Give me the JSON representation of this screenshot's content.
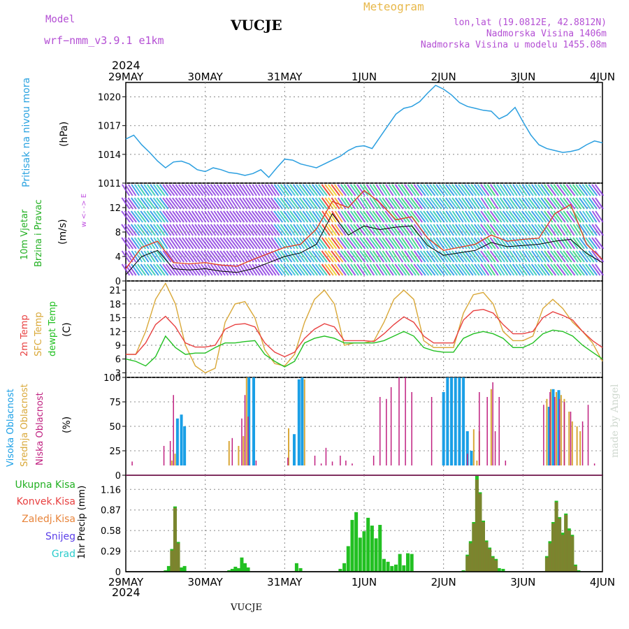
{
  "header": {
    "model_label": "Model",
    "model_name": "wrf−nmm_v3.9.1  e1km",
    "station": "VUCJE",
    "meteogram": "Meteogram",
    "lonlat": "lon,lat (19.0812E, 42.8812N)",
    "elevation": "Nadmorska Visina 1406m",
    "model_elevation": "Nadmorska Visina u modelu 1455.08m",
    "watermark": "made by Angel"
  },
  "time_axis": {
    "year": "2024",
    "ticks": [
      "29MAY",
      "30MAY",
      "31MAY",
      "1JUN",
      "2JUN",
      "3JUN",
      "4JUN"
    ],
    "footer_station": "VUCJE"
  },
  "colors": {
    "pressure": "#2b9fe0",
    "wind_black": "#000000",
    "wind_red_cross": "#e03c20",
    "temp_2m": "#e84040",
    "temp_sfc": "#d9a838",
    "dewpt": "#22c022",
    "cloud_high": "#1a9fe6",
    "cloud_mid": "#d9a838",
    "cloud_low": "#c02080",
    "precip_total": "#22c022",
    "precip_conv": "#e84040"
  },
  "chart_data": [
    {
      "type": "line",
      "panel": "pressure",
      "ylabel": "Pritisak na nivou mora",
      "unit": "(hPa)",
      "yticks": [
        1011,
        1014,
        1017,
        1020
      ],
      "ylim": [
        1011,
        1021.5
      ],
      "x_days": [
        0,
        0.1,
        0.2,
        0.3,
        0.4,
        0.5,
        0.6,
        0.7,
        0.8,
        0.9,
        1.0,
        1.1,
        1.2,
        1.3,
        1.4,
        1.5,
        1.6,
        1.7,
        1.8,
        1.9,
        2.0,
        2.1,
        2.2,
        2.3,
        2.4,
        2.5,
        2.6,
        2.7,
        2.8,
        2.9,
        3.0,
        3.1,
        3.2,
        3.3,
        3.4,
        3.5,
        3.6,
        3.7,
        3.8,
        3.9,
        4.0,
        4.1,
        4.2,
        4.3,
        4.4,
        4.5,
        4.6,
        4.7,
        4.8,
        4.9,
        5.0,
        5.1,
        5.2,
        5.3,
        5.4,
        5.5,
        5.6,
        5.7,
        5.8,
        5.9,
        6.0
      ],
      "series": [
        {
          "values": [
            1015.6,
            1016.0,
            1015.0,
            1014.2,
            1013.3,
            1012.6,
            1013.2,
            1013.3,
            1013.0,
            1012.4,
            1012.2,
            1012.6,
            1012.4,
            1012.1,
            1012.0,
            1011.8,
            1012.0,
            1012.4,
            1011.6,
            1012.6,
            1013.5,
            1013.4,
            1013.0,
            1012.8,
            1012.6,
            1013.0,
            1013.4,
            1013.8,
            1014.4,
            1014.8,
            1014.9,
            1014.6,
            1015.8,
            1017.0,
            1018.2,
            1018.8,
            1019.0,
            1019.5,
            1020.4,
            1021.2,
            1020.8,
            1020.2,
            1019.4,
            1019.0,
            1018.8,
            1018.6,
            1018.5,
            1017.7,
            1018.1,
            1018.9,
            1017.4,
            1016.0,
            1015.0,
            1014.6,
            1014.4,
            1014.2,
            1014.3,
            1014.5,
            1015.0,
            1015.4,
            1015.2
          ]
        }
      ]
    },
    {
      "type": "line",
      "panel": "wind",
      "ylabel": "10m Vjetar Brzina i Pravac",
      "unit": "(m/s)",
      "direction_legend": "w <- -> E",
      "yticks": [
        0,
        4,
        8,
        12
      ],
      "ylim": [
        0,
        16
      ],
      "x_days": [
        0,
        0.2,
        0.4,
        0.6,
        0.8,
        1.0,
        1.2,
        1.4,
        1.6,
        1.8,
        2.0,
        2.2,
        2.4,
        2.6,
        2.8,
        3.0,
        3.2,
        3.4,
        3.6,
        3.8,
        4.0,
        4.2,
        4.4,
        4.6,
        4.8,
        5.0,
        5.2,
        5.4,
        5.6,
        5.8,
        6.0
      ],
      "series": [
        {
          "name": "speed",
          "values": [
            1.0,
            4.0,
            5.0,
            2.0,
            1.8,
            2.0,
            1.6,
            1.4,
            2.0,
            3.0,
            4.0,
            4.6,
            6.0,
            11.0,
            7.5,
            9.0,
            8.4,
            8.8,
            9.0,
            5.8,
            4.2,
            4.6,
            5.0,
            6.3,
            5.6,
            5.8,
            6.0,
            6.5,
            6.8,
            4.5,
            3.0
          ]
        },
        {
          "name": "gust",
          "values": [
            2.0,
            5.5,
            6.5,
            3.0,
            2.8,
            3.0,
            2.6,
            2.4,
            3.5,
            4.5,
            5.5,
            6.0,
            8.5,
            13.0,
            12.0,
            14.8,
            12.8,
            10.0,
            10.5,
            7.0,
            5.0,
            5.5,
            6.0,
            7.5,
            6.5,
            6.8,
            7.0,
            11.0,
            12.5,
            6.0,
            3.5
          ]
        }
      ]
    },
    {
      "type": "line",
      "panel": "temperature",
      "ylabels": [
        "2m Temp",
        "SFC Temp",
        "dewpt Temp"
      ],
      "unit": "(C)",
      "yticks": [
        3,
        6,
        9,
        12,
        15,
        18,
        21
      ],
      "ylim": [
        2,
        23
      ],
      "x_days": [
        0,
        0.125,
        0.25,
        0.375,
        0.5,
        0.625,
        0.75,
        0.875,
        1.0,
        1.125,
        1.25,
        1.375,
        1.5,
        1.625,
        1.75,
        1.875,
        2.0,
        2.125,
        2.25,
        2.375,
        2.5,
        2.625,
        2.75,
        2.875,
        3.0,
        3.125,
        3.25,
        3.375,
        3.5,
        3.625,
        3.75,
        3.875,
        4.0,
        4.125,
        4.25,
        4.375,
        4.5,
        4.625,
        4.75,
        4.875,
        5.0,
        5.125,
        5.25,
        5.375,
        5.5,
        5.625,
        5.75,
        5.875,
        6.0
      ],
      "series": [
        {
          "name": "2m Temp",
          "values": [
            7,
            7,
            9.5,
            13.5,
            15.3,
            13.0,
            9.5,
            8.6,
            8.6,
            9.0,
            12.5,
            13.5,
            13.7,
            13.0,
            9.5,
            7.5,
            6.5,
            7.5,
            10.5,
            12.5,
            13.7,
            13.0,
            10.0,
            10.0,
            10.0,
            9.8,
            11.5,
            13.5,
            15.2,
            14.0,
            11.0,
            9.5,
            9.5,
            9.5,
            14.5,
            16.5,
            16.8,
            16.0,
            13.5,
            11.5,
            11.5,
            12.0,
            15.0,
            16.3,
            15.5,
            14.5,
            12.0,
            10.0,
            8.5
          ]
        },
        {
          "name": "SFC Temp",
          "values": [
            7,
            7,
            12,
            19,
            22.5,
            18,
            9,
            4.5,
            3,
            4,
            14,
            18,
            18.5,
            15,
            8,
            5,
            4.5,
            7,
            14,
            19,
            21,
            18,
            9,
            9.5,
            9.5,
            10,
            14,
            19,
            21,
            19,
            10,
            8.5,
            8.5,
            8.5,
            16,
            20,
            20.5,
            18,
            12,
            10,
            10,
            11,
            17,
            19,
            17,
            14,
            12,
            9.5,
            5.5
          ]
        },
        {
          "name": "dewpt Temp",
          "values": [
            6,
            5.5,
            4.5,
            6.5,
            11,
            8.5,
            7,
            7.3,
            7.3,
            8.5,
            9.5,
            9.5,
            9.8,
            10,
            7,
            5.5,
            4.3,
            5.5,
            9.5,
            10.5,
            11,
            10.5,
            9.5,
            9.5,
            9.5,
            9.5,
            10,
            11,
            12,
            11,
            8.5,
            7.8,
            7.5,
            7.5,
            10.5,
            11.5,
            12,
            11.5,
            10.5,
            8.5,
            8.5,
            9.5,
            11.5,
            12.3,
            12,
            11,
            9,
            7.5,
            6
          ]
        }
      ]
    },
    {
      "type": "bar",
      "panel": "clouds",
      "ylabels": [
        "Visoka Oblacnost",
        "Srednja Oblacnost",
        "Niska Oblacnost"
      ],
      "unit": "(%)",
      "yticks": [
        0,
        25,
        50,
        75,
        100
      ],
      "ylim": [
        0,
        100
      ],
      "series": [
        {
          "name": "Visoka Oblacnost",
          "x": [
            0.65,
            0.7,
            0.74,
            1.55,
            1.61,
            2.12,
            2.18,
            2.22,
            4.0,
            4.05,
            4.1,
            4.15,
            4.2,
            4.25,
            4.3,
            4.35,
            5.33,
            5.38,
            5.45
          ],
          "values": [
            58,
            62,
            50,
            100,
            100,
            42,
            98,
            100,
            85,
            100,
            100,
            100,
            100,
            100,
            45,
            25,
            70,
            88,
            87
          ]
        },
        {
          "name": "Srednja Oblacnost",
          "x": [
            0.58,
            0.62,
            1.3,
            1.42,
            1.48,
            1.52,
            2.05,
            2.25,
            4.38,
            4.42,
            4.45,
            4.6,
            5.1,
            5.3,
            5.35,
            5.42,
            5.48,
            5.52,
            5.58,
            5.62,
            5.68,
            5.72
          ],
          "values": [
            15,
            22,
            35,
            30,
            40,
            100,
            48,
            98,
            47,
            15,
            45,
            88,
            5,
            78,
            88,
            85,
            82,
            78,
            65,
            55,
            50,
            45
          ]
        },
        {
          "name": "Niska Oblacnost",
          "x": [
            0.08,
            0.4,
            0.48,
            0.56,
            0.6,
            1.27,
            1.34,
            1.46,
            1.5,
            1.54,
            1.64,
            2.04,
            2.38,
            2.46,
            2.52,
            2.6,
            2.7,
            2.77,
            2.85,
            3.12,
            3.2,
            3.28,
            3.34,
            3.44,
            3.52,
            3.6,
            3.85,
            4.3,
            4.45,
            4.55,
            4.62,
            4.65,
            4.7,
            4.78,
            5.2,
            5.26,
            5.34,
            5.4,
            5.46,
            5.52,
            5.6,
            5.75,
            5.82,
            5.9
          ],
          "values": [
            14,
            10,
            30,
            35,
            82,
            10,
            38,
            58,
            82,
            60,
            15,
            18,
            20,
            12,
            28,
            14,
            20,
            15,
            12,
            20,
            80,
            78,
            90,
            100,
            100,
            85,
            80,
            22,
            85,
            80,
            95,
            45,
            80,
            15,
            5,
            72,
            85,
            80,
            78,
            75,
            65,
            55,
            72,
            12
          ]
        }
      ]
    },
    {
      "type": "bar",
      "panel": "precip",
      "ylabels": [
        "Ukupna Kisa",
        "Konvek.Kisa",
        "Zaledj.Kisa",
        "Snijeg",
        "Grad"
      ],
      "unit": "1hr Precip (mm)",
      "yticks": [
        0,
        0.29,
        0.58,
        0.87,
        1.16
      ],
      "ylim": [
        0,
        1.36
      ],
      "series": [
        {
          "name": "Ukupna Kisa",
          "x": [
            0.5,
            0.54,
            0.58,
            0.62,
            0.66,
            0.7,
            0.74,
            1.3,
            1.34,
            1.38,
            1.42,
            1.46,
            1.5,
            1.54,
            2.15,
            2.2,
            2.7,
            2.75,
            2.8,
            2.85,
            2.9,
            2.95,
            3.0,
            3.05,
            3.1,
            3.15,
            3.2,
            3.25,
            3.3,
            3.35,
            3.4,
            3.45,
            3.5,
            3.55,
            3.6,
            4.25,
            4.3,
            4.34,
            4.38,
            4.42,
            4.46,
            4.5,
            4.54,
            4.58,
            4.62,
            4.66,
            4.7,
            4.75,
            5.3,
            5.34,
            5.38,
            5.42,
            5.46,
            5.5,
            5.54,
            5.58,
            5.62,
            5.66,
            5.7
          ],
          "values": [
            0.02,
            0.08,
            0.32,
            0.92,
            0.42,
            0.06,
            0.08,
            0.02,
            0.04,
            0.07,
            0.05,
            0.2,
            0.12,
            0.06,
            0.12,
            0.05,
            0.04,
            0.12,
            0.36,
            0.73,
            0.84,
            0.48,
            0.57,
            0.76,
            0.65,
            0.47,
            0.66,
            0.18,
            0.14,
            0.08,
            0.1,
            0.25,
            0.09,
            0.26,
            0.25,
            0.02,
            0.24,
            0.43,
            0.7,
            1.35,
            1.12,
            0.72,
            0.44,
            0.34,
            0.22,
            0.18,
            0.05,
            0.04,
            0.22,
            0.43,
            0.7,
            1.0,
            0.77,
            0.55,
            0.82,
            0.61,
            0.52,
            0.1,
            0.02
          ]
        },
        {
          "name": "Konvek.Kisa",
          "x": [
            0.58,
            0.62,
            0.66,
            4.3,
            4.34,
            4.38,
            4.42,
            4.46,
            4.5,
            4.54,
            4.58,
            4.62,
            4.66,
            5.3,
            5.34,
            5.38,
            5.42,
            5.46,
            5.5,
            5.54,
            5.58,
            5.62,
            5.66
          ],
          "values": [
            0.3,
            0.9,
            0.4,
            0.22,
            0.4,
            0.68,
            1.3,
            1.1,
            0.7,
            0.42,
            0.32,
            0.2,
            0.16,
            0.2,
            0.4,
            0.68,
            0.98,
            0.75,
            0.52,
            0.8,
            0.58,
            0.5,
            0.08
          ]
        }
      ]
    }
  ]
}
